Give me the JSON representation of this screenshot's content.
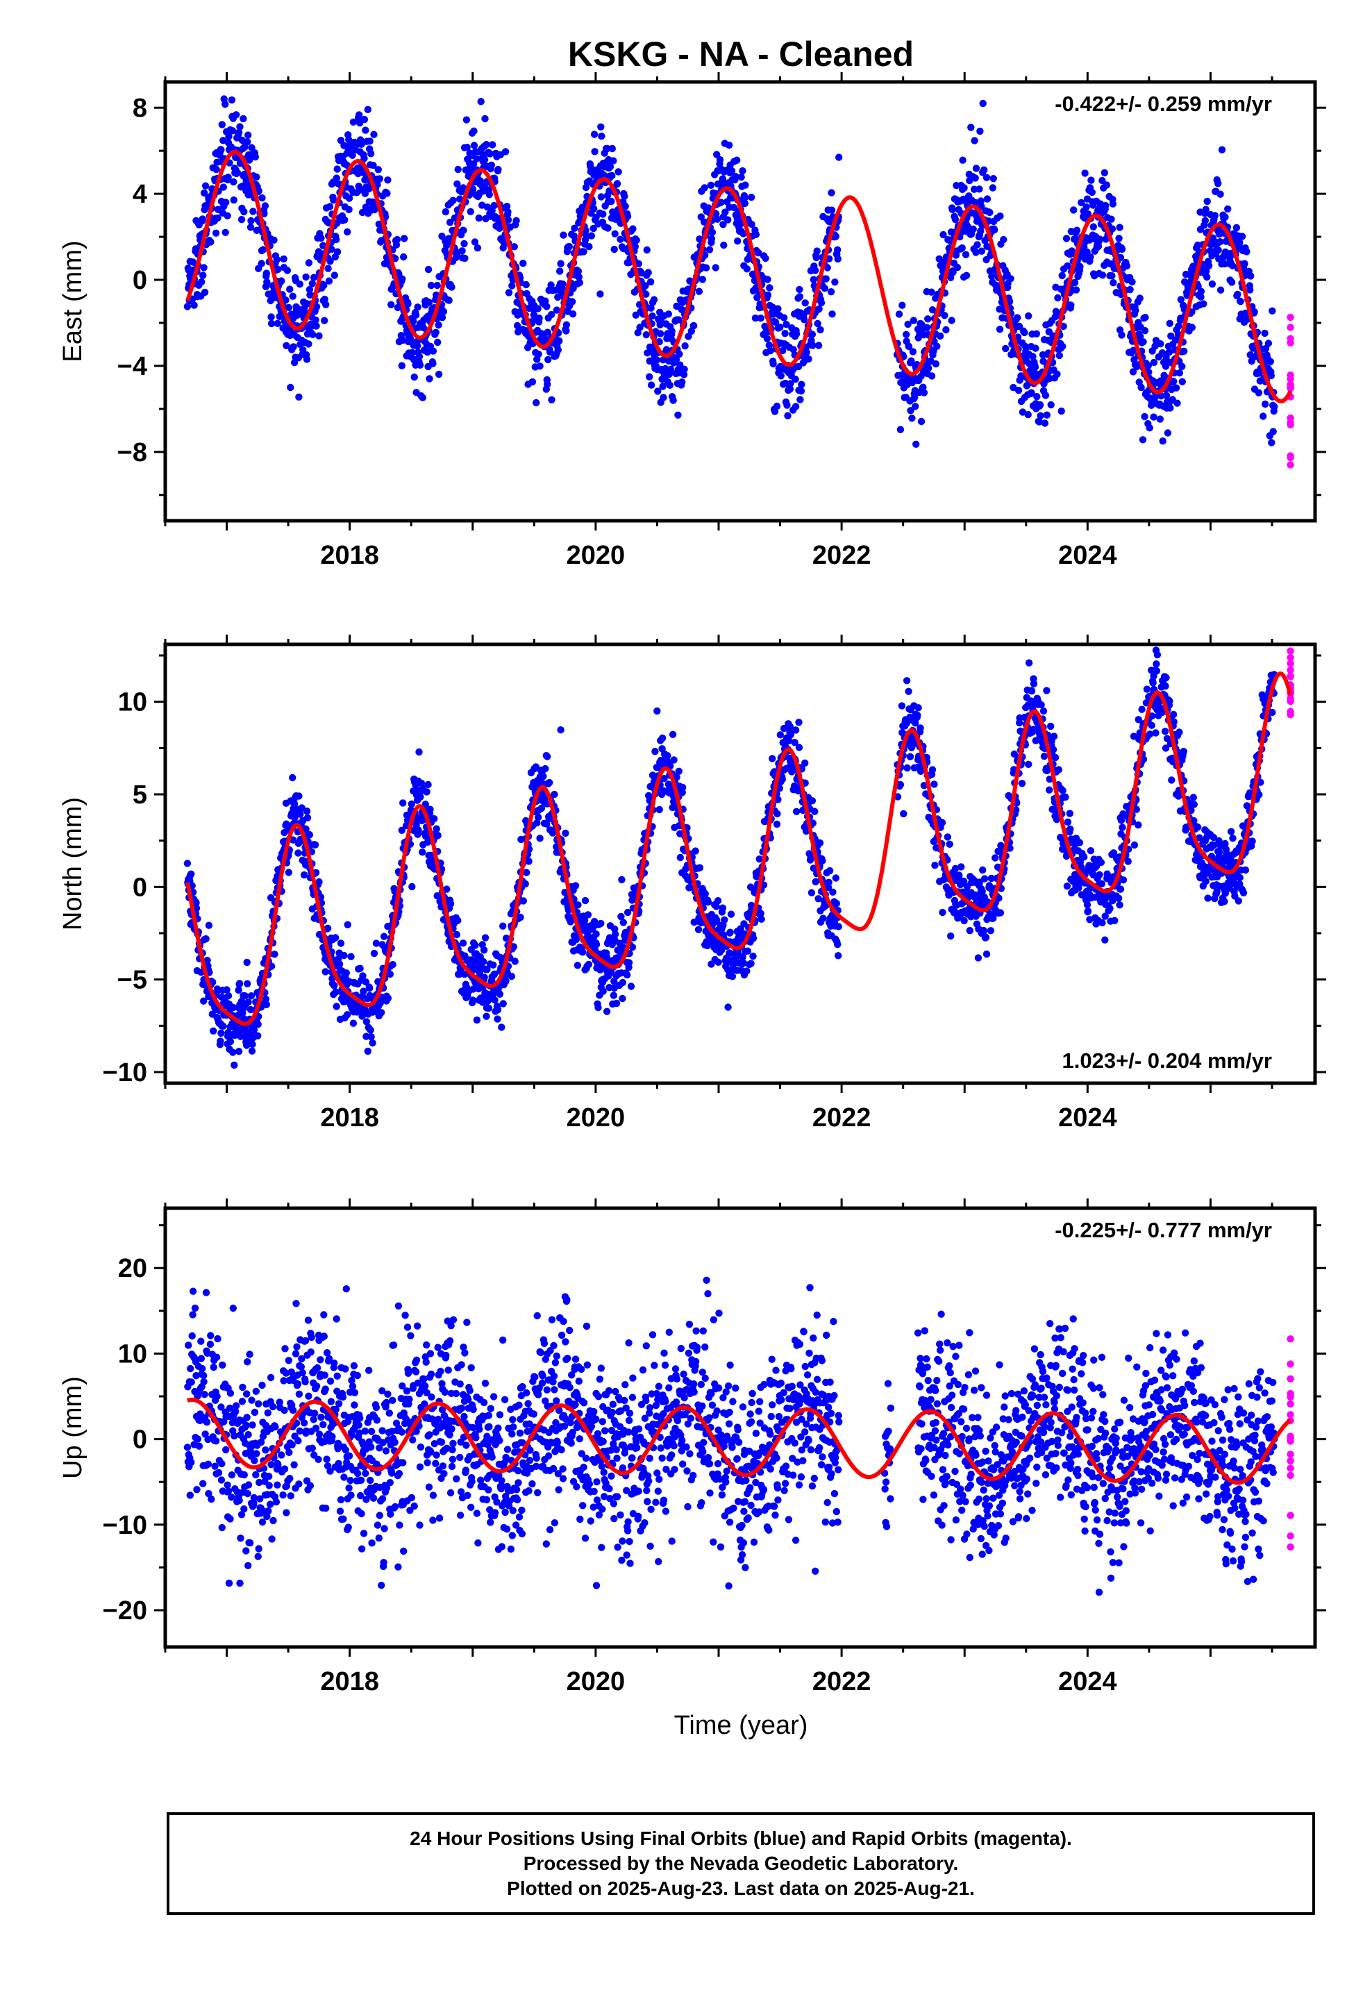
{
  "title": "KSKG  - NA - Cleaned",
  "xlabel": "Time (year)",
  "colors": {
    "final": "#0000ff",
    "rapid": "#ff00ff",
    "model": "#ff0000",
    "axis": "#000000"
  },
  "footer": {
    "line1": "24 Hour Positions Using Final Orbits (blue) and Rapid Orbits (magenta).",
    "line2": "Processed by the Nevada Geodetic Laboratory.",
    "line3": "Plotted on 2025-Aug-23. Last data on 2025-Aug-21."
  },
  "chart_data": [
    {
      "type": "scatter",
      "component": "east",
      "ylabel": "East (mm)",
      "rate_label": "-0.422+/- 0.259 mm/yr",
      "rate_position": "top-right",
      "xlim": [
        2016.5,
        2025.85
      ],
      "ylim": [
        -11.2,
        9.2
      ],
      "xticks": [
        2018,
        2020,
        2022,
        2024
      ],
      "yticks": [
        8,
        4,
        0,
        -4,
        -8
      ],
      "x_minor_step": 0.5,
      "y_minor_step": 2,
      "model": {
        "trend_mm_per_yr": -0.422,
        "ref_year": 2021.2,
        "offset": 0.2,
        "annual_amp": 4.0,
        "annual_peak": 2021.07,
        "semi_amp": 0.0,
        "semi_phase": 2021.0,
        "noise_sd": 1.2
      },
      "data_span": [
        2016.68,
        2025.52
      ],
      "gaps": [
        [
          2021.98,
          2022.45
        ]
      ],
      "rapid_span": [
        2025.55,
        2025.65
      ],
      "model_span": [
        2016.68,
        2025.65
      ],
      "curve_points": [
        {
          "x": 2016.68,
          "y": -0.3
        },
        {
          "x": 2017.0,
          "y": 4.9
        },
        {
          "x": 2017.5,
          "y": -2.6
        },
        {
          "x": 2018.05,
          "y": 4.5
        },
        {
          "x": 2018.5,
          "y": -3.1
        },
        {
          "x": 2019.05,
          "y": 4.1
        },
        {
          "x": 2019.5,
          "y": -3.5
        },
        {
          "x": 2020.05,
          "y": 3.7
        },
        {
          "x": 2020.5,
          "y": -3.9
        },
        {
          "x": 2021.05,
          "y": 3.3
        },
        {
          "x": 2021.5,
          "y": -4.3
        },
        {
          "x": 2022.05,
          "y": 2.8
        },
        {
          "x": 2022.5,
          "y": -4.8
        },
        {
          "x": 2023.05,
          "y": 2.4
        },
        {
          "x": 2023.5,
          "y": -5.3
        },
        {
          "x": 2024.05,
          "y": 2.0
        },
        {
          "x": 2024.5,
          "y": -5.6
        },
        {
          "x": 2025.05,
          "y": 1.6
        },
        {
          "x": 2025.5,
          "y": -6.0
        }
      ]
    },
    {
      "type": "scatter",
      "component": "north",
      "ylabel": "North (mm)",
      "rate_label": "1.023+/- 0.204 mm/yr",
      "rate_position": "bottom-right",
      "xlim": [
        2016.5,
        2025.85
      ],
      "ylim": [
        -10.6,
        13.1
      ],
      "xticks": [
        2018,
        2020,
        2022,
        2024
      ],
      "yticks": [
        10,
        5,
        0,
        -5,
        -10
      ],
      "x_minor_step": 0.5,
      "y_minor_step": 2.5,
      "model": {
        "trend_mm_per_yr": 1.023,
        "ref_year": 2021.2,
        "offset": 0.9,
        "annual_amp": 5.0,
        "annual_peak": 2021.58,
        "semi_amp": 1.2,
        "semi_phase": 2021.55,
        "noise_sd": 1.0
      },
      "data_span": [
        2016.68,
        2025.52
      ],
      "gaps": [
        [
          2021.98,
          2022.45
        ]
      ],
      "rapid_span": [
        2025.55,
        2025.65
      ],
      "model_span": [
        2016.68,
        2025.65
      ],
      "curve_points": [
        {
          "x": 2016.68,
          "y": -2.8
        },
        {
          "x": 2016.9,
          "y": -7.7
        },
        {
          "x": 2017.5,
          "y": 1.5
        },
        {
          "x": 2017.9,
          "y": -6.7
        },
        {
          "x": 2018.5,
          "y": 2.6
        },
        {
          "x": 2018.9,
          "y": -5.6
        },
        {
          "x": 2019.5,
          "y": 3.5
        },
        {
          "x": 2019.9,
          "y": -4.6
        },
        {
          "x": 2020.5,
          "y": 4.6
        },
        {
          "x": 2020.9,
          "y": -3.6
        },
        {
          "x": 2021.5,
          "y": 5.5
        },
        {
          "x": 2021.9,
          "y": -2.6
        },
        {
          "x": 2022.5,
          "y": 6.6
        },
        {
          "x": 2022.9,
          "y": -1.5
        },
        {
          "x": 2023.5,
          "y": 7.6
        },
        {
          "x": 2023.9,
          "y": -0.5
        },
        {
          "x": 2024.5,
          "y": 8.6
        },
        {
          "x": 2024.9,
          "y": 0.6
        },
        {
          "x": 2025.55,
          "y": 9.6
        }
      ]
    },
    {
      "type": "scatter",
      "component": "up",
      "ylabel": "Up (mm)",
      "rate_label": "-0.225+/- 0.777 mm/yr",
      "rate_position": "top-right",
      "xlim": [
        2016.5,
        2025.85
      ],
      "ylim": [
        -24.3,
        27.0
      ],
      "xticks": [
        2018,
        2020,
        2022,
        2024
      ],
      "yticks": [
        20,
        10,
        0,
        -10,
        -20
      ],
      "x_minor_step": 0.5,
      "y_minor_step": 5,
      "model": {
        "trend_mm_per_yr": -0.225,
        "ref_year": 2021.2,
        "offset": -0.3,
        "annual_amp": 3.9,
        "annual_peak": 2020.72,
        "semi_amp": 0.0,
        "semi_phase": 2021.0,
        "noise_sd": 5.2
      },
      "data_span": [
        2016.68,
        2025.52
      ],
      "gaps": [
        [
          2021.98,
          2022.35
        ],
        [
          2022.4,
          2022.62
        ]
      ],
      "rapid_span": [
        2025.55,
        2025.65
      ],
      "model_span": [
        2016.68,
        2025.65
      ],
      "curve_points": [
        {
          "x": 2016.68,
          "y": 4.5
        },
        {
          "x": 2017.25,
          "y": -3.4
        },
        {
          "x": 2017.75,
          "y": 4.3
        },
        {
          "x": 2018.25,
          "y": -3.6
        },
        {
          "x": 2018.75,
          "y": 4.1
        },
        {
          "x": 2019.25,
          "y": -3.8
        },
        {
          "x": 2019.75,
          "y": 3.9
        },
        {
          "x": 2020.25,
          "y": -4.0
        },
        {
          "x": 2020.75,
          "y": 3.6
        },
        {
          "x": 2021.25,
          "y": -4.2
        },
        {
          "x": 2021.75,
          "y": 3.4
        },
        {
          "x": 2022.25,
          "y": -4.4
        },
        {
          "x": 2022.75,
          "y": 3.2
        },
        {
          "x": 2023.25,
          "y": -4.6
        },
        {
          "x": 2023.75,
          "y": 3.0
        },
        {
          "x": 2024.25,
          "y": -4.8
        },
        {
          "x": 2024.75,
          "y": 2.8
        },
        {
          "x": 2025.25,
          "y": -5.0
        },
        {
          "x": 2025.65,
          "y": 1.5
        }
      ]
    }
  ]
}
